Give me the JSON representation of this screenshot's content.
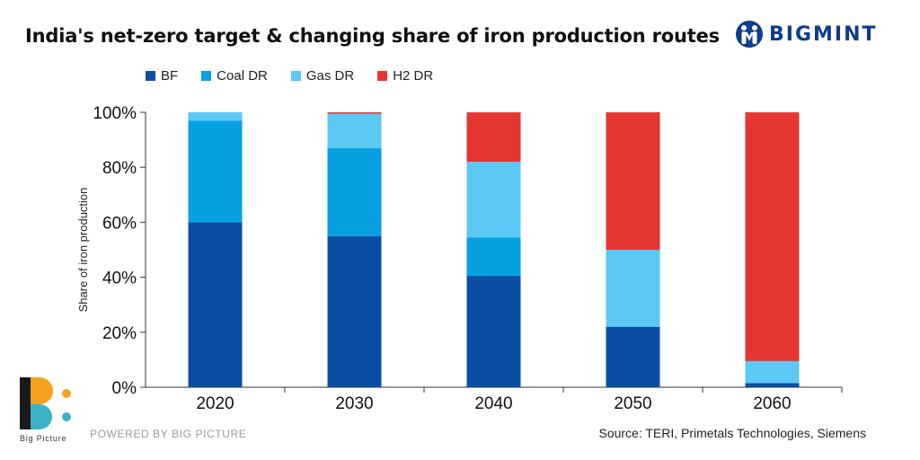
{
  "header": {
    "title": "India's net-zero target & changing share of iron production routes",
    "brand": "BIGMINT"
  },
  "footer": {
    "powered_by": "POWERED BY BIG PICTURE",
    "source": "Source: TERI, Primetals Technologies, Siemens",
    "logo_label": "Big Picture"
  },
  "chart_data": {
    "type": "bar",
    "stacked": true,
    "title": "India's net-zero target & changing share of iron production routes",
    "xlabel": "",
    "ylabel": "Share of iron production",
    "categories": [
      "2020",
      "2030",
      "2040",
      "2050",
      "2060"
    ],
    "ylim": [
      0,
      100
    ],
    "yticks": [
      "0%",
      "20%",
      "40%",
      "60%",
      "80%",
      "100%"
    ],
    "series": [
      {
        "name": "BF",
        "color": "#0a4ea3",
        "values": [
          60,
          55,
          40.5,
          22,
          1.5
        ]
      },
      {
        "name": "Coal DR",
        "color": "#07a0e0",
        "values": [
          37,
          32,
          14,
          0,
          0
        ]
      },
      {
        "name": "Gas DR",
        "color": "#5cc8f4",
        "values": [
          3,
          12.5,
          27.5,
          28,
          8
        ]
      },
      {
        "name": "H2 DR",
        "color": "#e63632",
        "values": [
          0,
          0.5,
          18,
          50,
          90.5
        ]
      }
    ],
    "legend_position": "top",
    "grid": false
  }
}
